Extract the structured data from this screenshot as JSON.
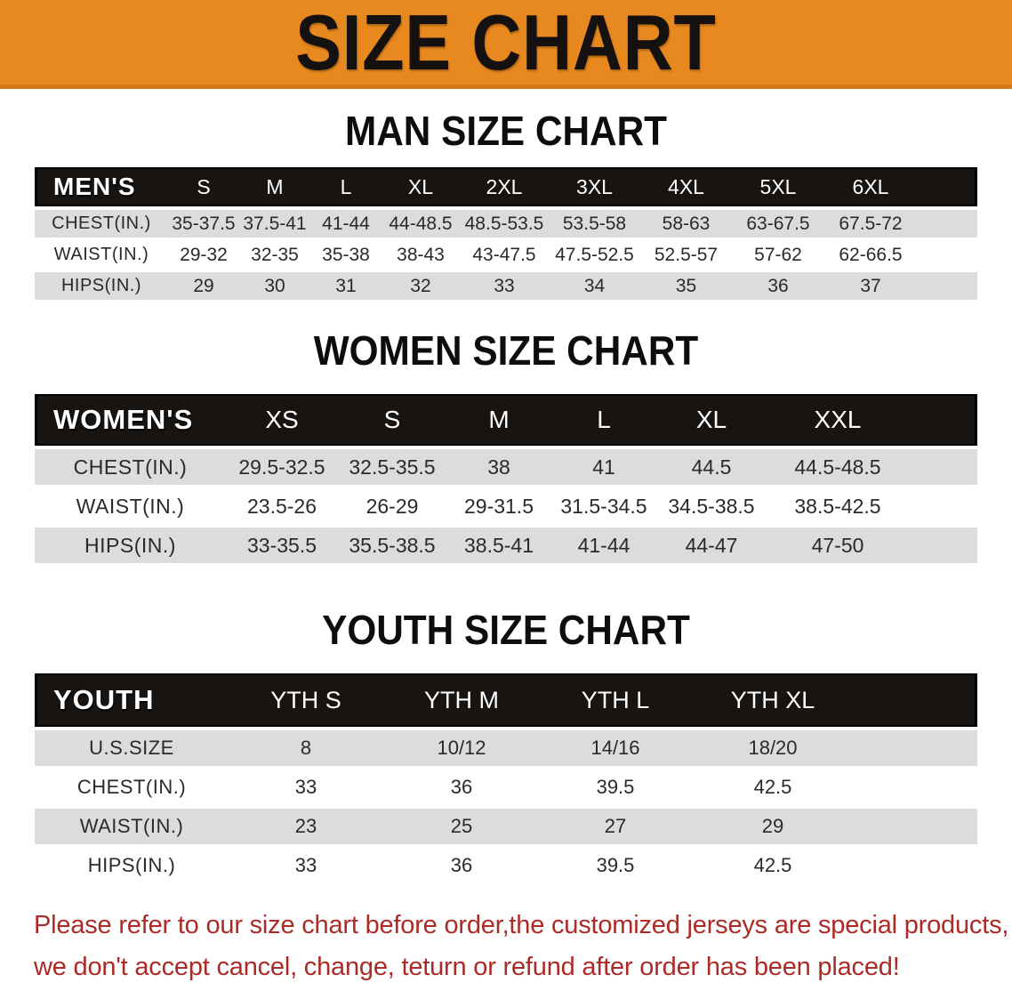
{
  "banner": {
    "title": "SIZE CHART",
    "bg_color": "#E8891F"
  },
  "colors": {
    "header_bar": "#171412",
    "row_gray": "#dcdcdc",
    "row_white": "#ffffff",
    "disclaimer_red": "#AD2B26"
  },
  "sections": [
    {
      "title": "MAN SIZE CHART",
      "header_label": "MEN'S",
      "columns": [
        "S",
        "M",
        "L",
        "XL",
        "2XL",
        "3XL",
        "4XL",
        "5XL",
        "6XL"
      ],
      "rows": [
        {
          "label": "CHEST(IN.)",
          "values": [
            "35-37.5",
            "37.5-41",
            "41-44",
            "44-48.5",
            "48.5-53.5",
            "53.5-58",
            "58-63",
            "63-67.5",
            "67.5-72"
          ]
        },
        {
          "label": "WAIST(IN.)",
          "values": [
            "29-32",
            "32-35",
            "35-38",
            "38-43",
            "43-47.5",
            "47.5-52.5",
            "52.5-57",
            "57-62",
            "62-66.5"
          ]
        },
        {
          "label": "HIPS(IN.)",
          "values": [
            "29",
            "30",
            "31",
            "32",
            "33",
            "34",
            "35",
            "36",
            "37"
          ]
        }
      ]
    },
    {
      "title": "WOMEN SIZE CHART",
      "header_label": "WOMEN'S",
      "columns": [
        "XS",
        "S",
        "M",
        "L",
        "XL",
        "XXL"
      ],
      "rows": [
        {
          "label": "CHEST(IN.)",
          "values": [
            "29.5-32.5",
            "32.5-35.5",
            "38",
            "41",
            "44.5",
            "44.5-48.5"
          ]
        },
        {
          "label": "WAIST(IN.)",
          "values": [
            "23.5-26",
            "26-29",
            "29-31.5",
            "31.5-34.5",
            "34.5-38.5",
            "38.5-42.5"
          ]
        },
        {
          "label": "HIPS(IN.)",
          "values": [
            "33-35.5",
            "35.5-38.5",
            "38.5-41",
            "41-44",
            "44-47",
            "47-50"
          ]
        }
      ]
    },
    {
      "title": "YOUTH SIZE CHART",
      "header_label": "YOUTH",
      "columns": [
        "YTH S",
        "YTH M",
        "YTH L",
        "YTH XL"
      ],
      "rows": [
        {
          "label": "U.S.SIZE",
          "values": [
            "8",
            "10/12",
            "14/16",
            "18/20"
          ]
        },
        {
          "label": "CHEST(IN.)",
          "values": [
            "33",
            "36",
            "39.5",
            "42.5"
          ]
        },
        {
          "label": "WAIST(IN.)",
          "values": [
            "23",
            "25",
            "27",
            "29"
          ]
        },
        {
          "label": "HIPS(IN.)",
          "values": [
            "33",
            "36",
            "39.5",
            "42.5"
          ]
        }
      ]
    }
  ],
  "disclaimer": {
    "line1": "Please refer to our size chart before order,the customized jerseys are special products,",
    "line2": "we don't accept cancel, change, teturn or refund after order has been placed!"
  }
}
